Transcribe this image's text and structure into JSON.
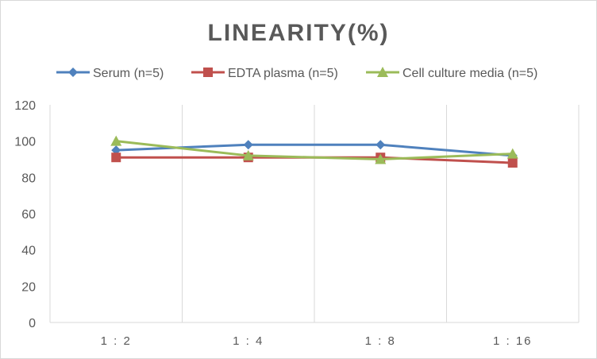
{
  "chart_data": {
    "type": "line",
    "title": "LINEARITY(%)",
    "categories": [
      "1:2",
      "1:4",
      "1:8",
      "1:16"
    ],
    "series": [
      {
        "name": "Serum (n=5)",
        "values": [
          95,
          98,
          98,
          92
        ],
        "color": "#4f81bd",
        "marker": "diamond"
      },
      {
        "name": "EDTA plasma (n=5)",
        "values": [
          91,
          91,
          91,
          88
        ],
        "color": "#c0504d",
        "marker": "square"
      },
      {
        "name": "Cell culture media (n=5)",
        "values": [
          100,
          92,
          90,
          93
        ],
        "color": "#9bbb59",
        "marker": "triangle"
      }
    ],
    "ylim": [
      0,
      120
    ],
    "yticks": [
      0,
      20,
      40,
      60,
      80,
      100,
      120
    ],
    "grid": "vertical",
    "legend": "top"
  }
}
